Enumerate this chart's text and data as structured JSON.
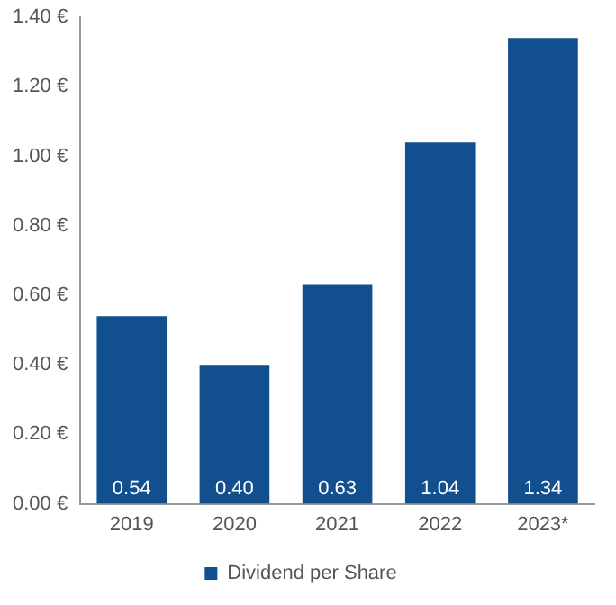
{
  "chart_data": {
    "type": "bar",
    "categories": [
      "2019",
      "2020",
      "2021",
      "2022",
      "2023*"
    ],
    "series": [
      {
        "name": "Dividend per Share",
        "color": "#114f8e",
        "values": [
          0.54,
          0.4,
          0.63,
          1.04,
          1.34
        ],
        "value_labels": [
          "0.54",
          "0.40",
          "0.63",
          "1.04",
          "1.34"
        ]
      }
    ],
    "ylim": [
      0,
      1.4
    ],
    "yticks": [
      {
        "value": 0,
        "label": "0.00 €"
      },
      {
        "value": 0.2,
        "label": "0.20 €"
      },
      {
        "value": 0.4,
        "label": "0.40 €"
      },
      {
        "value": 0.6,
        "label": "0.60 €"
      },
      {
        "value": 0.8,
        "label": "0.80 €"
      },
      {
        "value": 1.0,
        "label": "1.00 €"
      },
      {
        "value": 1.2,
        "label": "1.20 €"
      },
      {
        "value": 1.4,
        "label": "1.40 €"
      }
    ],
    "grid": false,
    "legend": "bottom"
  }
}
